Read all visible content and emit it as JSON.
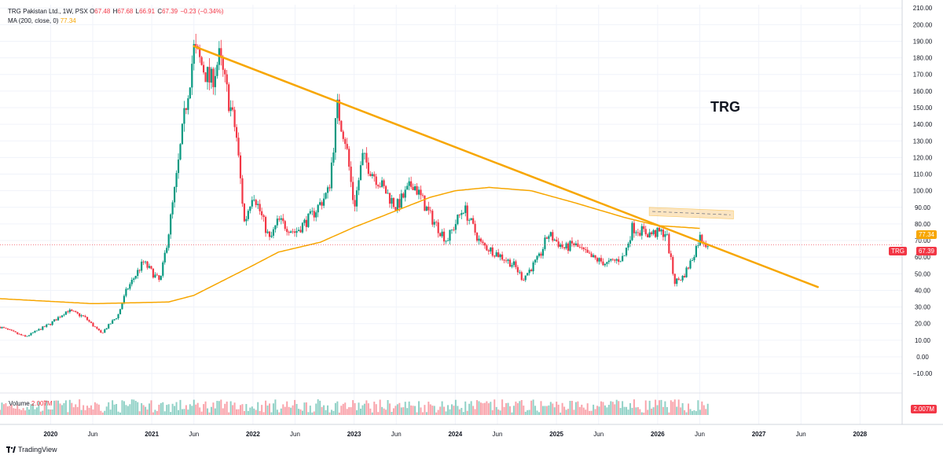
{
  "header": {
    "symbol": "TRG Pakistan Ltd., 1W, PSX",
    "open_label": "O",
    "open": "67.48",
    "high_label": "H",
    "high": "67.68",
    "low_label": "L",
    "low": "66.91",
    "close_label": "C",
    "close": "67.39",
    "change": "−0.23 (−0.34%)",
    "ma_label": "MA (200, close, 0)",
    "ma_value": "77.34"
  },
  "volume": {
    "label": "Volume",
    "value": "2.007M",
    "tag": "2.007M"
  },
  "annotation": "TRG",
  "price_tags": {
    "ma": "77.34",
    "ticker": "TRG",
    "last": "67.39"
  },
  "branding": "TradingView",
  "colors": {
    "up": "#089981",
    "down": "#f23645",
    "ma": "#f7a600",
    "trendline": "#f7a600",
    "zone": "#fad59a"
  },
  "chart_data": {
    "type": "candlestick",
    "title": "TRG Pakistan Ltd., 1W, PSX",
    "y_axis": {
      "ticks": [
        -10,
        0,
        10,
        20,
        30,
        40,
        50,
        60,
        70,
        80,
        90,
        100,
        110,
        120,
        130,
        140,
        150,
        160,
        170,
        180,
        190,
        200,
        210
      ],
      "tick_labels": [
        "−10.00",
        "0.00",
        "10.00",
        "20.00",
        "30.00",
        "40.00",
        "50.00",
        "60.00",
        "70.00",
        "80.00",
        "90.00",
        "100.00",
        "110.00",
        "120.00",
        "130.00",
        "140.00",
        "150.00",
        "160.00",
        "170.00",
        "180.00",
        "190.00",
        "200.00",
        "210.00"
      ],
      "ylim": [
        -18,
        212
      ]
    },
    "x_axis": {
      "range": [
        "2019-07",
        "2028-06"
      ],
      "ticks": [
        "2020",
        "Jun",
        "2021",
        "Jun",
        "2022",
        "Jun",
        "2023",
        "Jun",
        "2024",
        "Jun",
        "2025",
        "Jun",
        "2026",
        "Jun",
        "2027",
        "Jun",
        "2028"
      ],
      "tick_dates": [
        "2020-01",
        "2020-06",
        "2021-01",
        "2021-06",
        "2022-01",
        "2022-06",
        "2023-01",
        "2023-06",
        "2024-01",
        "2024-06",
        "2025-01",
        "2025-06",
        "2026-01",
        "2026-06",
        "2027-01",
        "2027-06",
        "2028-01"
      ]
    },
    "price_path": [
      [
        "2019-07",
        18
      ],
      [
        "2019-10",
        12
      ],
      [
        "2020-01",
        20
      ],
      [
        "2020-03",
        28
      ],
      [
        "2020-05",
        24
      ],
      [
        "2020-07",
        14
      ],
      [
        "2020-09",
        25
      ],
      [
        "2020-10",
        40
      ],
      [
        "2020-12",
        57
      ],
      [
        "2021-02",
        45
      ],
      [
        "2021-03",
        75
      ],
      [
        "2021-04",
        110
      ],
      [
        "2021-05",
        150
      ],
      [
        "2021-06",
        185
      ],
      [
        "2021-07",
        175
      ],
      [
        "2021-08",
        165
      ],
      [
        "2021-09",
        180
      ],
      [
        "2021-11",
        135
      ],
      [
        "2021-12",
        80
      ],
      [
        "2022-01",
        100
      ],
      [
        "2022-03",
        70
      ],
      [
        "2022-04",
        82
      ],
      [
        "2022-06",
        75
      ],
      [
        "2022-08",
        85
      ],
      [
        "2022-10",
        100
      ],
      [
        "2022-11",
        150
      ],
      [
        "2022-12",
        130
      ],
      [
        "2023-01",
        90
      ],
      [
        "2023-02",
        120
      ],
      [
        "2023-04",
        105
      ],
      [
        "2023-06",
        90
      ],
      [
        "2023-08",
        105
      ],
      [
        "2023-10",
        85
      ],
      [
        "2023-12",
        70
      ],
      [
        "2024-02",
        90
      ],
      [
        "2024-04",
        68
      ],
      [
        "2024-06",
        62
      ],
      [
        "2024-08",
        55
      ],
      [
        "2024-09",
        47
      ],
      [
        "2024-11",
        60
      ],
      [
        "2024-12",
        74
      ],
      [
        "2025-02",
        65
      ],
      [
        "2025-03",
        68
      ],
      [
        "2025-05",
        60
      ],
      [
        "2025-07",
        56
      ],
      [
        "2025-09",
        60
      ],
      [
        "2025-10",
        78
      ],
      [
        "2025-12",
        74
      ],
      [
        "2026-02",
        75
      ],
      [
        "2026-03",
        45
      ],
      [
        "2026-04",
        48
      ],
      [
        "2026-05",
        58
      ],
      [
        "2026-06",
        72
      ],
      [
        "2026-07",
        67.39
      ]
    ],
    "ma_200": [
      [
        "2019-07",
        35
      ],
      [
        "2020-06",
        32
      ],
      [
        "2021-03",
        33
      ],
      [
        "2021-06",
        37
      ],
      [
        "2022-01",
        55
      ],
      [
        "2022-04",
        63
      ],
      [
        "2022-09",
        69
      ],
      [
        "2023-01",
        78
      ],
      [
        "2023-06",
        88
      ],
      [
        "2023-10",
        96
      ],
      [
        "2024-01",
        100
      ],
      [
        "2024-05",
        102
      ],
      [
        "2024-10",
        100
      ],
      [
        "2025-03",
        93
      ],
      [
        "2025-09",
        84
      ],
      [
        "2026-01",
        79
      ],
      [
        "2026-06",
        77.34
      ]
    ],
    "trendline": {
      "from": [
        "2021-06",
        187
      ],
      "to": [
        "2027-08",
        42
      ]
    },
    "resistance_zone": {
      "from": "2025-12",
      "to": "2026-10",
      "top_start": 90,
      "top_end": 88,
      "bottom_start": 85,
      "bottom_end": 83
    },
    "volume_value": "2.007M"
  }
}
